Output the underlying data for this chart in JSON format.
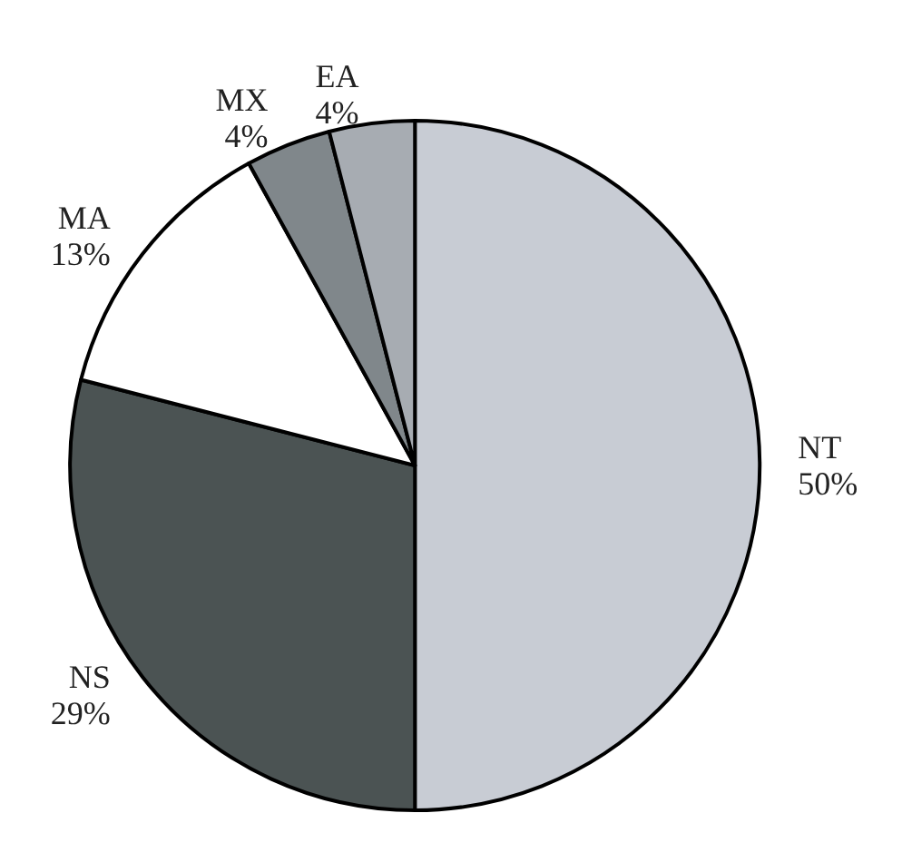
{
  "chart_data": {
    "type": "pie",
    "categories": [
      "NT",
      "NS",
      "MA",
      "MX",
      "EA"
    ],
    "values": [
      50,
      29,
      13,
      4,
      4
    ],
    "value_labels": [
      "50%",
      "29%",
      "13%",
      "4%",
      "4%"
    ],
    "colors": [
      "#c8ccd4",
      "#4b5353",
      "#ffffff",
      "#80878b",
      "#a7acb2"
    ],
    "legend": false
  }
}
